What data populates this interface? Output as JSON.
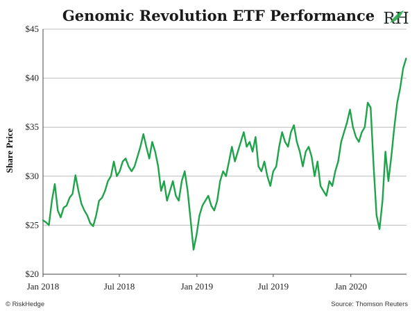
{
  "colors": {
    "line": "#1fa34a",
    "grid": "#bcbcbc",
    "axis": "#444444",
    "text": "#1a1a1a",
    "logo_accent": "#2aa84f"
  },
  "logo": {
    "text": "RH",
    "icon": "leaf-icon"
  },
  "footer": {
    "left": "© RiskHedge",
    "right": "Source: Thomson Reuters"
  },
  "chart_data": {
    "type": "line",
    "title": "Genomic Revolution ETF Performance",
    "ylabel": "Share Price",
    "xlabel": "",
    "ylim": [
      20,
      45
    ],
    "grid": true,
    "y_ticks": [
      {
        "value": 20,
        "label": "$20"
      },
      {
        "value": 25,
        "label": "$25"
      },
      {
        "value": 30,
        "label": "$30"
      },
      {
        "value": 35,
        "label": "$35"
      },
      {
        "value": 40,
        "label": "$40"
      },
      {
        "value": 45,
        "label": "$45"
      }
    ],
    "x_ticks": [
      {
        "date": "2018-01-01",
        "label": "Jan 2018"
      },
      {
        "date": "2018-07-01",
        "label": "Jul 2018"
      },
      {
        "date": "2019-01-01",
        "label": "Jan 2019"
      },
      {
        "date": "2019-07-01",
        "label": "Jul 2019"
      },
      {
        "date": "2020-01-01",
        "label": "Jan 2020"
      }
    ],
    "xlim": [
      "2018-01-01",
      "2020-05-12"
    ],
    "series": [
      {
        "name": "",
        "points": [
          [
            "2018-01-01",
            25.5
          ],
          [
            "2018-01-08",
            25.3
          ],
          [
            "2018-01-15",
            25.0
          ],
          [
            "2018-01-22",
            27.5
          ],
          [
            "2018-01-29",
            29.2
          ],
          [
            "2018-02-05",
            26.5
          ],
          [
            "2018-02-12",
            25.8
          ],
          [
            "2018-02-19",
            26.8
          ],
          [
            "2018-02-26",
            27.0
          ],
          [
            "2018-03-05",
            27.8
          ],
          [
            "2018-03-12",
            28.2
          ],
          [
            "2018-03-19",
            30.1
          ],
          [
            "2018-03-26",
            28.5
          ],
          [
            "2018-04-02",
            27.2
          ],
          [
            "2018-04-09",
            26.5
          ],
          [
            "2018-04-16",
            26.0
          ],
          [
            "2018-04-23",
            25.2
          ],
          [
            "2018-04-30",
            24.9
          ],
          [
            "2018-05-07",
            26.0
          ],
          [
            "2018-05-14",
            27.5
          ],
          [
            "2018-05-21",
            27.8
          ],
          [
            "2018-05-28",
            28.5
          ],
          [
            "2018-06-04",
            29.5
          ],
          [
            "2018-06-11",
            30.0
          ],
          [
            "2018-06-18",
            31.5
          ],
          [
            "2018-06-25",
            30.0
          ],
          [
            "2018-07-02",
            30.5
          ],
          [
            "2018-07-09",
            31.5
          ],
          [
            "2018-07-16",
            31.8
          ],
          [
            "2018-07-23",
            31.0
          ],
          [
            "2018-07-30",
            30.5
          ],
          [
            "2018-08-06",
            31.0
          ],
          [
            "2018-08-13",
            32.0
          ],
          [
            "2018-08-20",
            33.0
          ],
          [
            "2018-08-27",
            34.3
          ],
          [
            "2018-09-03",
            33.0
          ],
          [
            "2018-09-10",
            31.8
          ],
          [
            "2018-09-17",
            33.5
          ],
          [
            "2018-09-24",
            32.5
          ],
          [
            "2018-10-01",
            31.0
          ],
          [
            "2018-10-08",
            28.5
          ],
          [
            "2018-10-15",
            29.5
          ],
          [
            "2018-10-22",
            27.5
          ],
          [
            "2018-10-29",
            28.5
          ],
          [
            "2018-11-05",
            29.5
          ],
          [
            "2018-11-12",
            28.0
          ],
          [
            "2018-11-19",
            27.5
          ],
          [
            "2018-11-26",
            29.5
          ],
          [
            "2018-12-03",
            30.5
          ],
          [
            "2018-12-10",
            28.5
          ],
          [
            "2018-12-17",
            25.5
          ],
          [
            "2018-12-24",
            22.5
          ],
          [
            "2018-12-31",
            24.0
          ],
          [
            "2019-01-07",
            26.0
          ],
          [
            "2019-01-14",
            27.0
          ],
          [
            "2019-01-21",
            27.5
          ],
          [
            "2019-01-28",
            28.0
          ],
          [
            "2019-02-04",
            27.0
          ],
          [
            "2019-02-11",
            26.5
          ],
          [
            "2019-02-18",
            27.5
          ],
          [
            "2019-02-25",
            29.5
          ],
          [
            "2019-03-04",
            30.5
          ],
          [
            "2019-03-11",
            30.0
          ],
          [
            "2019-03-18",
            31.5
          ],
          [
            "2019-03-25",
            33.0
          ],
          [
            "2019-04-01",
            31.5
          ],
          [
            "2019-04-08",
            32.5
          ],
          [
            "2019-04-15",
            33.5
          ],
          [
            "2019-04-22",
            34.5
          ],
          [
            "2019-04-29",
            33.0
          ],
          [
            "2019-05-06",
            33.5
          ],
          [
            "2019-05-13",
            32.5
          ],
          [
            "2019-05-20",
            34.0
          ],
          [
            "2019-05-27",
            31.0
          ],
          [
            "2019-06-03",
            30.5
          ],
          [
            "2019-06-10",
            31.5
          ],
          [
            "2019-06-17",
            30.0
          ],
          [
            "2019-06-24",
            29.0
          ],
          [
            "2019-07-01",
            30.5
          ],
          [
            "2019-07-08",
            31.0
          ],
          [
            "2019-07-15",
            33.0
          ],
          [
            "2019-07-22",
            34.5
          ],
          [
            "2019-07-29",
            33.5
          ],
          [
            "2019-08-05",
            33.0
          ],
          [
            "2019-08-12",
            34.5
          ],
          [
            "2019-08-19",
            35.2
          ],
          [
            "2019-08-26",
            33.5
          ],
          [
            "2019-09-02",
            32.5
          ],
          [
            "2019-09-09",
            31.0
          ],
          [
            "2019-09-16",
            32.5
          ],
          [
            "2019-09-23",
            33.0
          ],
          [
            "2019-09-30",
            32.0
          ],
          [
            "2019-10-07",
            30.0
          ],
          [
            "2019-10-14",
            31.5
          ],
          [
            "2019-10-21",
            29.0
          ],
          [
            "2019-10-28",
            28.5
          ],
          [
            "2019-11-04",
            28.0
          ],
          [
            "2019-11-11",
            29.5
          ],
          [
            "2019-11-18",
            29.0
          ],
          [
            "2019-11-25",
            30.5
          ],
          [
            "2019-12-02",
            31.5
          ],
          [
            "2019-12-09",
            33.5
          ],
          [
            "2019-12-16",
            34.5
          ],
          [
            "2019-12-23",
            35.5
          ],
          [
            "2019-12-30",
            36.8
          ],
          [
            "2020-01-06",
            35.0
          ],
          [
            "2020-01-13",
            34.0
          ],
          [
            "2020-01-20",
            33.5
          ],
          [
            "2020-01-27",
            34.5
          ],
          [
            "2020-02-03",
            35.0
          ],
          [
            "2020-02-10",
            37.5
          ],
          [
            "2020-02-17",
            37.0
          ],
          [
            "2020-02-24",
            31.0
          ],
          [
            "2020-03-02",
            26.0
          ],
          [
            "2020-03-09",
            24.6
          ],
          [
            "2020-03-16",
            27.5
          ],
          [
            "2020-03-23",
            32.5
          ],
          [
            "2020-03-30",
            29.5
          ],
          [
            "2020-04-06",
            32.0
          ],
          [
            "2020-04-13",
            35.0
          ],
          [
            "2020-04-20",
            37.5
          ],
          [
            "2020-04-27",
            39.0
          ],
          [
            "2020-05-04",
            41.0
          ],
          [
            "2020-05-11",
            42.0
          ]
        ]
      }
    ]
  }
}
